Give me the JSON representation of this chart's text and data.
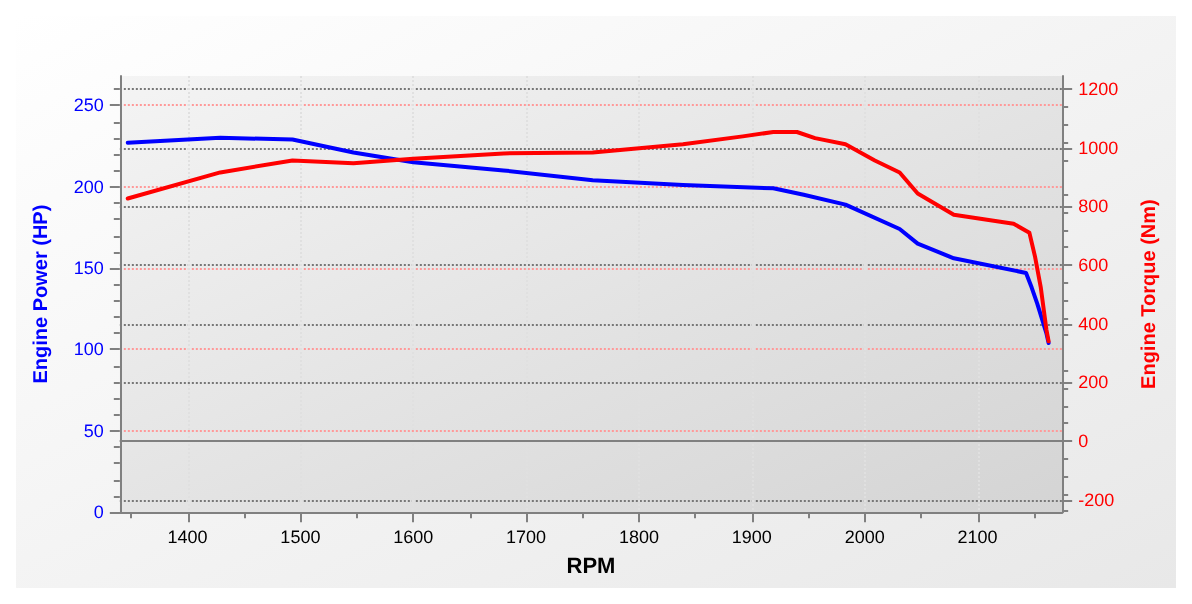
{
  "chart_data": {
    "type": "line",
    "xlabel": "RPM",
    "ylabel": "Engine Power (HP)",
    "y2label": "Engine Torque (Nm)",
    "xlim": [
      1340,
      2175
    ],
    "xticks": [
      1400,
      1500,
      1600,
      1700,
      1800,
      1900,
      2000,
      2100
    ],
    "ylim": [
      0,
      268
    ],
    "yticks": [
      0,
      50,
      100,
      150,
      200,
      250
    ],
    "y2lim": [
      -243,
      1245
    ],
    "y2ticks": [
      -200,
      0,
      200,
      400,
      600,
      800,
      1000,
      1200
    ],
    "grid": true,
    "marker": "none",
    "line_style": "solid",
    "ref_lines": [
      {
        "axis": "y2",
        "value": 0,
        "color": "#808080"
      }
    ],
    "series": [
      {
        "color": "#0000ff",
        "x": [
          1347,
          1429,
          1493,
          1547,
          1600,
          1680,
          1759,
          1839,
          1919,
          1946,
          1983,
          2031,
          2047,
          2079,
          2143,
          2148,
          2153,
          2161,
          2163
        ],
        "values": [
          227,
          230,
          229,
          221,
          215,
          210,
          204,
          201,
          199,
          195,
          189,
          174,
          165,
          156,
          147,
          138,
          128,
          110,
          104
        ]
      },
      {
        "color": "#ff0000",
        "axis": "y2",
        "x": [
          1347,
          1429,
          1493,
          1547,
          1600,
          1680,
          1759,
          1839,
          1892,
          1919,
          1940,
          1956,
          1983,
          2009,
          2031,
          2047,
          2079,
          2132,
          2146,
          2151,
          2156,
          2161,
          2163
        ],
        "values": [
          827,
          916,
          957,
          947,
          963,
          981,
          984,
          1012,
          1039,
          1054,
          1054,
          1033,
          1012,
          957,
          916,
          844,
          772,
          741,
          710,
          628,
          525,
          381,
          340
        ]
      }
    ]
  }
}
